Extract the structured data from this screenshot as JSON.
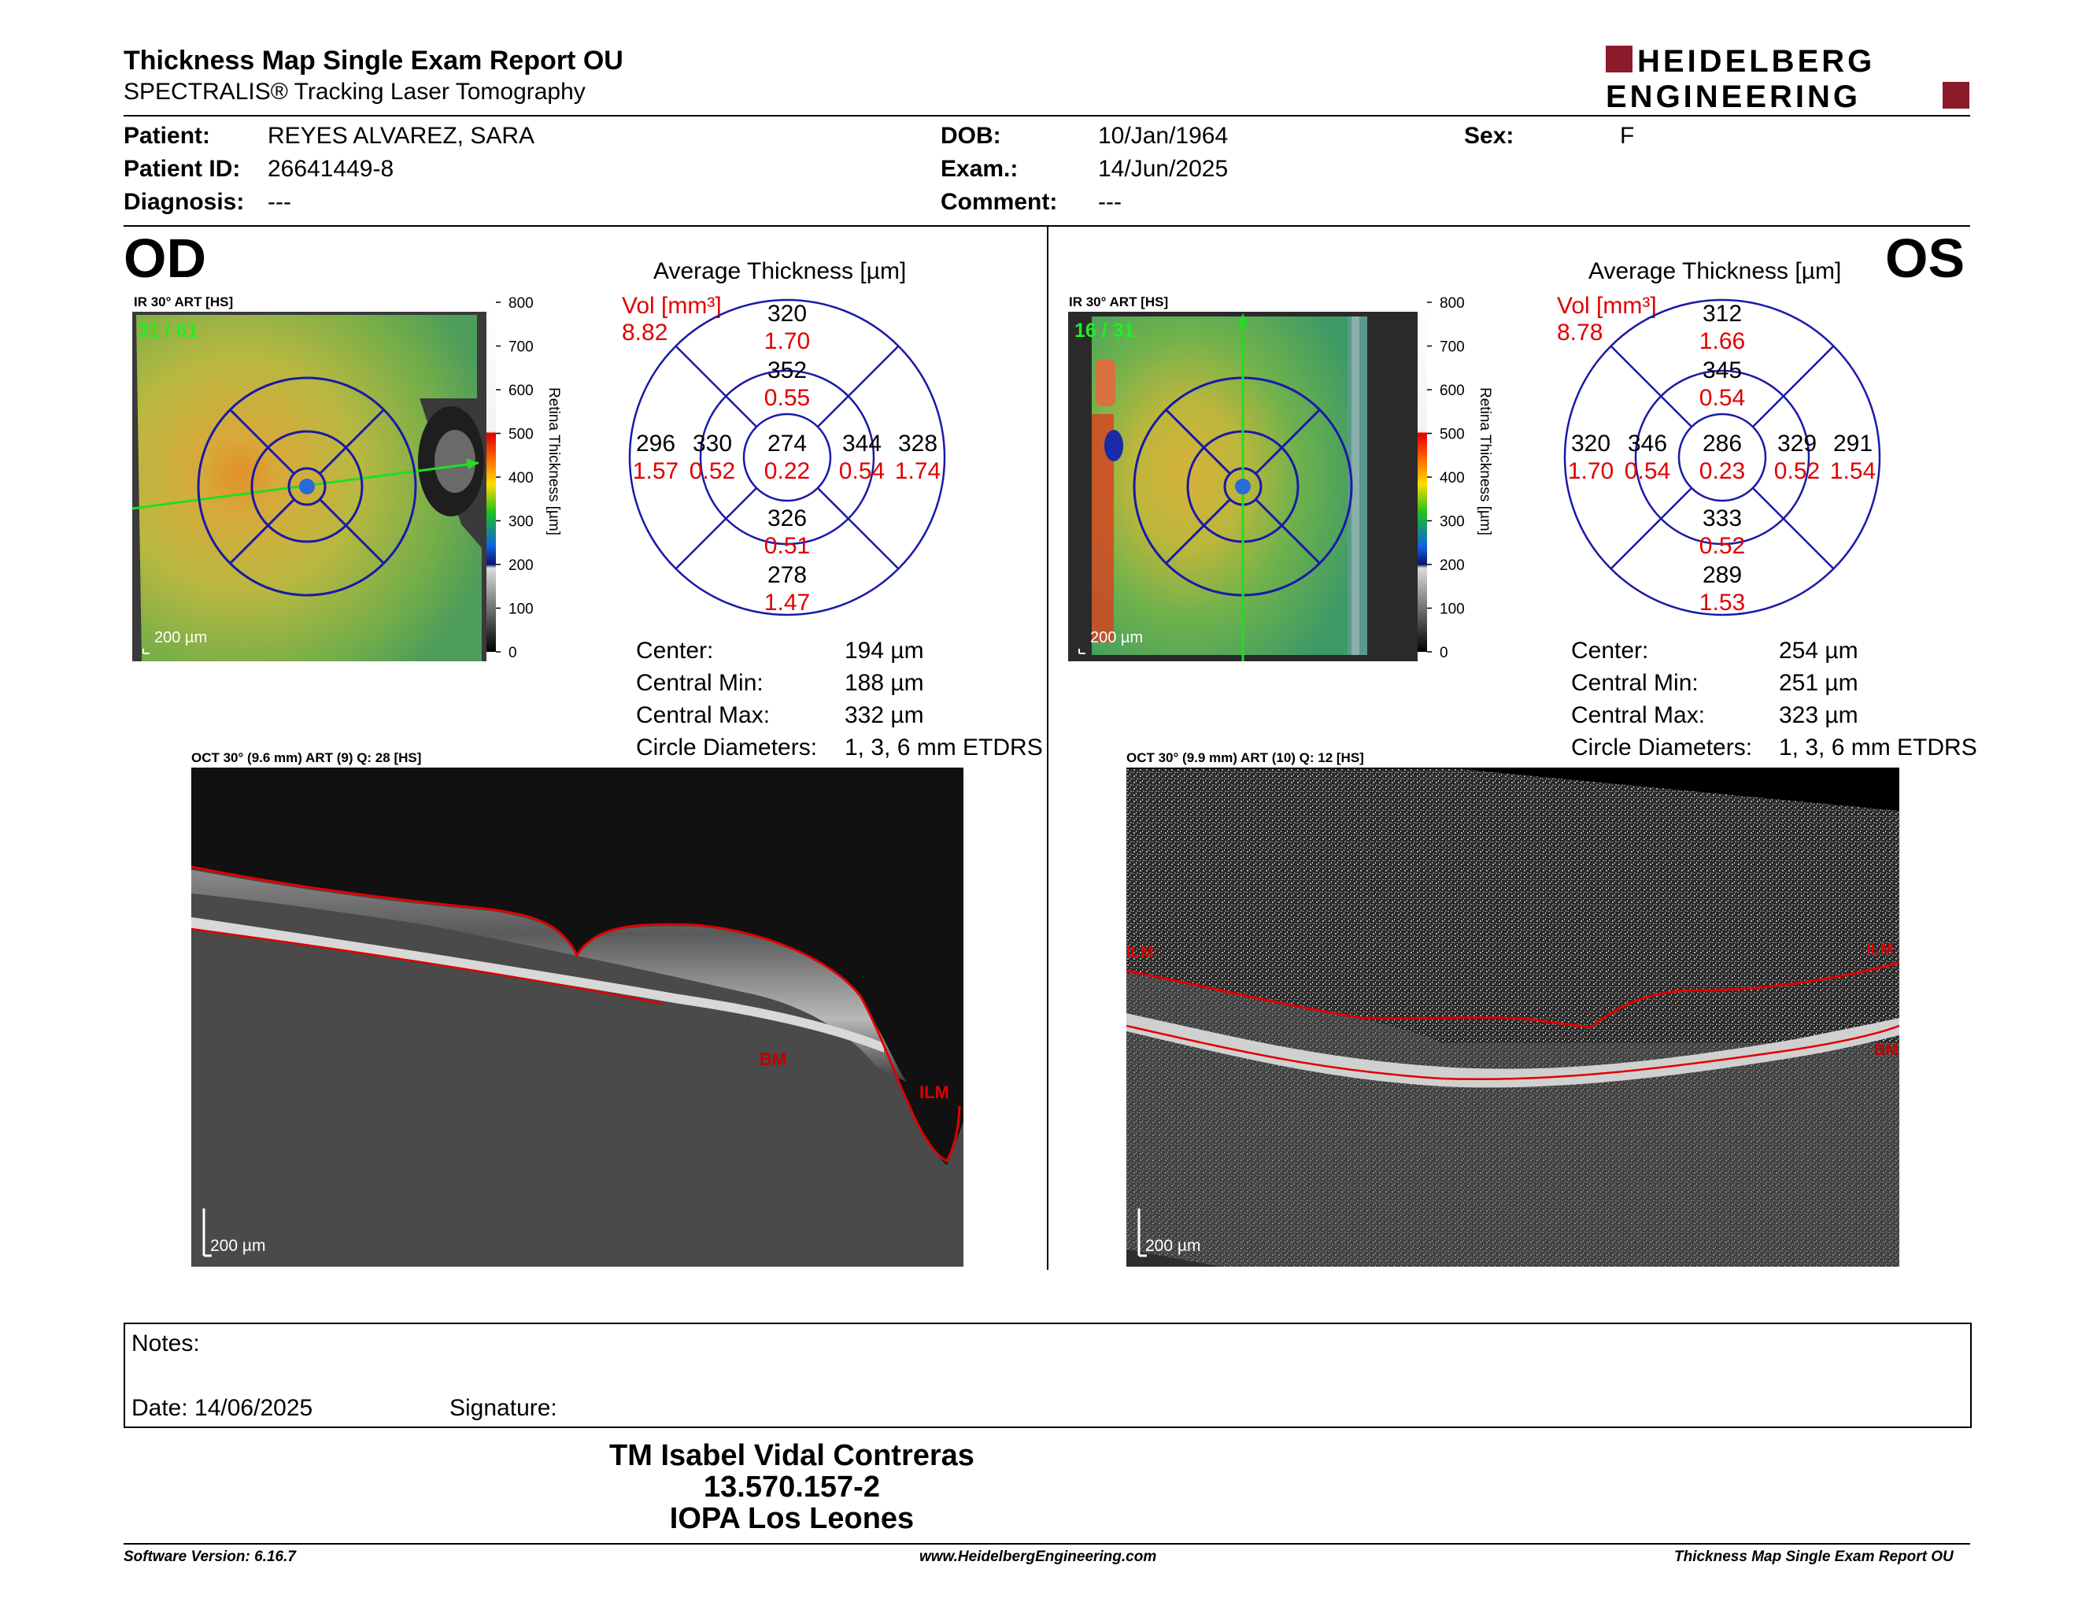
{
  "header": {
    "title": "Thickness Map Single Exam Report OU",
    "subtitle": "SPECTRALIS® Tracking Laser Tomography",
    "logo_line1": "HEIDELBERG",
    "logo_line2": "ENGINEERING"
  },
  "patient": {
    "patient_label": "Patient:",
    "patient_value": "REYES ALVAREZ, SARA",
    "id_label": "Patient ID:",
    "id_value": "26641449-8",
    "diagnosis_label": "Diagnosis:",
    "diagnosis_value": "---",
    "dob_label": "DOB:",
    "dob_value": "10/Jan/1964",
    "exam_label": "Exam.:",
    "exam_value": "14/Jun/2025",
    "comment_label": "Comment:",
    "comment_value": "---",
    "sex_label": "Sex:",
    "sex_value": "F"
  },
  "od": {
    "eye": "OD",
    "ir_title": "IR 30° ART [HS]",
    "frame": "31 / 61",
    "scale": "200 µm",
    "colorbar_ticks": [
      "800",
      "700",
      "600",
      "500",
      "400",
      "300",
      "200",
      "100",
      "0"
    ],
    "colorbar_label": "Retina Thickness [µm]",
    "avg_title": "Average Thickness [µm]",
    "vol_label": "Vol [mm³]",
    "vol_value": "8.82",
    "sectors": {
      "outer_sup": {
        "t": "320",
        "v": "1.70"
      },
      "inner_sup": {
        "t": "352",
        "v": "0.55"
      },
      "outer_left": {
        "t": "296",
        "v": "1.57"
      },
      "inner_left": {
        "t": "330",
        "v": "0.52"
      },
      "center": {
        "t": "274",
        "v": "0.22"
      },
      "inner_right": {
        "t": "344",
        "v": "0.54"
      },
      "outer_right": {
        "t": "328",
        "v": "1.74"
      },
      "inner_inf": {
        "t": "326",
        "v": "0.51"
      },
      "outer_inf": {
        "t": "278",
        "v": "1.47"
      }
    },
    "stats": [
      {
        "label": "Center:",
        "value": "194 µm"
      },
      {
        "label": "Central Min:",
        "value": "188 µm"
      },
      {
        "label": "Central Max:",
        "value": "332 µm"
      },
      {
        "label": "Circle Diameters:",
        "value": "1, 3, 6 mm ETDRS"
      }
    ],
    "oct_title": "OCT 30° (9.6 mm) ART (9) Q: 28 [HS]",
    "oct_scale": "200 µm",
    "label_bm": "BM",
    "label_ilm": "ILM"
  },
  "os": {
    "eye": "OS",
    "ir_title": "IR 30° ART [HS]",
    "frame": "16 / 31",
    "scale": "200 µm",
    "colorbar_ticks": [
      "800",
      "700",
      "600",
      "500",
      "400",
      "300",
      "200",
      "100",
      "0"
    ],
    "colorbar_label": "Retina Thickness [µm]",
    "avg_title": "Average Thickness [µm]",
    "vol_label": "Vol [mm³]",
    "vol_value": "8.78",
    "sectors": {
      "outer_sup": {
        "t": "312",
        "v": "1.66"
      },
      "inner_sup": {
        "t": "345",
        "v": "0.54"
      },
      "outer_left": {
        "t": "320",
        "v": "1.70"
      },
      "inner_left": {
        "t": "346",
        "v": "0.54"
      },
      "center": {
        "t": "286",
        "v": "0.23"
      },
      "inner_right": {
        "t": "329",
        "v": "0.52"
      },
      "outer_right": {
        "t": "291",
        "v": "1.54"
      },
      "inner_inf": {
        "t": "333",
        "v": "0.52"
      },
      "outer_inf": {
        "t": "289",
        "v": "1.53"
      }
    },
    "stats": [
      {
        "label": "Center:",
        "value": "254 µm"
      },
      {
        "label": "Central Min:",
        "value": "251 µm"
      },
      {
        "label": "Central Max:",
        "value": "323 µm"
      },
      {
        "label": "Circle Diameters:",
        "value": "1, 3, 6 mm ETDRS"
      }
    ],
    "oct_title": "OCT 30° (9.9 mm) ART (10) Q: 12 [HS]",
    "oct_scale": "200 µm",
    "label_ilm_left": "ILM",
    "label_ilm_right": "ILM",
    "label_bm": "BM"
  },
  "notes": {
    "label": "Notes:",
    "date_label": "Date: 14/06/2025",
    "signature_label": "Signature:"
  },
  "signature": {
    "name": "TM Isabel Vidal Contreras",
    "id": "13.570.157-2",
    "place": "IOPA Los Leones"
  },
  "footer": {
    "software": "Software Version: 6.16.7",
    "url": "www.HeidelbergEngineering.com",
    "report": "Thickness Map Single Exam Report OU"
  },
  "colors": {
    "red": "#e00000",
    "dark_red": "#8b1a2b",
    "etdrs_blue": "#1a1aa8"
  }
}
